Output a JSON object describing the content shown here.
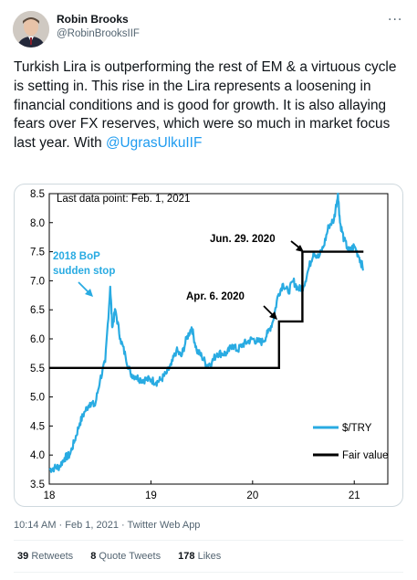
{
  "author": {
    "name": "Robin Brooks",
    "handle": "@RobinBrooksIIF"
  },
  "tweet": {
    "text": "Turkish Lira is outperforming the rest of EM & a virtuous cycle is setting in. This rise in the Lira represents a loosening in financial conditions and is good for growth. It is also allaying fears over FX reserves, which were so much in market focus last year. With ",
    "mention": "@UgrasUlkuIIF"
  },
  "meta": "10:14 AM · Feb 1, 2021 · Twitter Web App",
  "stats": {
    "retweets_count": "39",
    "retweets_label": "Retweets",
    "quotes_count": "8",
    "quotes_label": "Quote Tweets",
    "likes_count": "178",
    "likes_label": "Likes"
  },
  "colors": {
    "accent": "#1d9bf0",
    "series_lira": "#29abe2",
    "series_fair": "#000000",
    "annotation_blue": "#29abe2"
  },
  "chart_data": {
    "type": "line",
    "title": "",
    "xlabel": "",
    "ylabel": "",
    "xlim": [
      18,
      21.33
    ],
    "ylim": [
      3.5,
      8.5
    ],
    "x_ticks": [
      "18",
      "19",
      "20",
      "21"
    ],
    "y_ticks": [
      "3.5",
      "4.0",
      "4.5",
      "5.0",
      "5.5",
      "6.0",
      "6.5",
      "7.0",
      "7.5",
      "8.0",
      "8.5"
    ],
    "annotations": {
      "last_point": "Last data point: Feb. 1, 2021",
      "bop": "2018 BoP sudden stop",
      "apr": "Apr. 6. 2020",
      "jun": "Jun. 29. 2020"
    },
    "legend": {
      "placement": "bottom-right",
      "items": [
        "$/TRY",
        "Fair value"
      ]
    },
    "series": [
      {
        "name": "$/TRY",
        "x": [
          18.0,
          18.05,
          18.1,
          18.15,
          18.2,
          18.25,
          18.3,
          18.35,
          18.4,
          18.45,
          18.5,
          18.55,
          18.6,
          18.62,
          18.65,
          18.7,
          18.75,
          18.8,
          18.85,
          18.9,
          18.95,
          19.0,
          19.05,
          19.1,
          19.15,
          19.2,
          19.25,
          19.3,
          19.35,
          19.4,
          19.45,
          19.5,
          19.55,
          19.6,
          19.65,
          19.7,
          19.75,
          19.8,
          19.85,
          19.9,
          19.95,
          20.0,
          20.05,
          20.1,
          20.15,
          20.2,
          20.25,
          20.3,
          20.35,
          20.4,
          20.45,
          20.5,
          20.55,
          20.6,
          20.65,
          20.7,
          20.75,
          20.8,
          20.84,
          20.86,
          20.9,
          20.95,
          21.0,
          21.05,
          21.09
        ],
        "y": [
          3.75,
          3.78,
          3.8,
          3.95,
          4.0,
          4.25,
          4.55,
          4.75,
          4.9,
          4.85,
          5.3,
          5.6,
          6.9,
          6.2,
          6.5,
          6.0,
          5.7,
          5.4,
          5.35,
          5.3,
          5.3,
          5.3,
          5.25,
          5.3,
          5.4,
          5.55,
          5.8,
          5.7,
          6.0,
          6.2,
          5.8,
          5.7,
          5.55,
          5.6,
          5.75,
          5.75,
          5.75,
          5.9,
          5.8,
          5.9,
          5.95,
          6.0,
          5.95,
          5.95,
          6.1,
          6.3,
          6.75,
          6.95,
          6.8,
          7.0,
          6.85,
          6.9,
          7.2,
          7.5,
          7.4,
          7.6,
          7.95,
          8.05,
          8.5,
          8.0,
          7.7,
          7.5,
          7.6,
          7.4,
          7.2
        ]
      },
      {
        "name": "Fair value",
        "x": [
          18.0,
          20.26,
          20.26,
          20.49,
          20.49,
          21.09
        ],
        "y": [
          5.5,
          5.5,
          6.3,
          6.3,
          7.5,
          7.5
        ]
      }
    ]
  }
}
